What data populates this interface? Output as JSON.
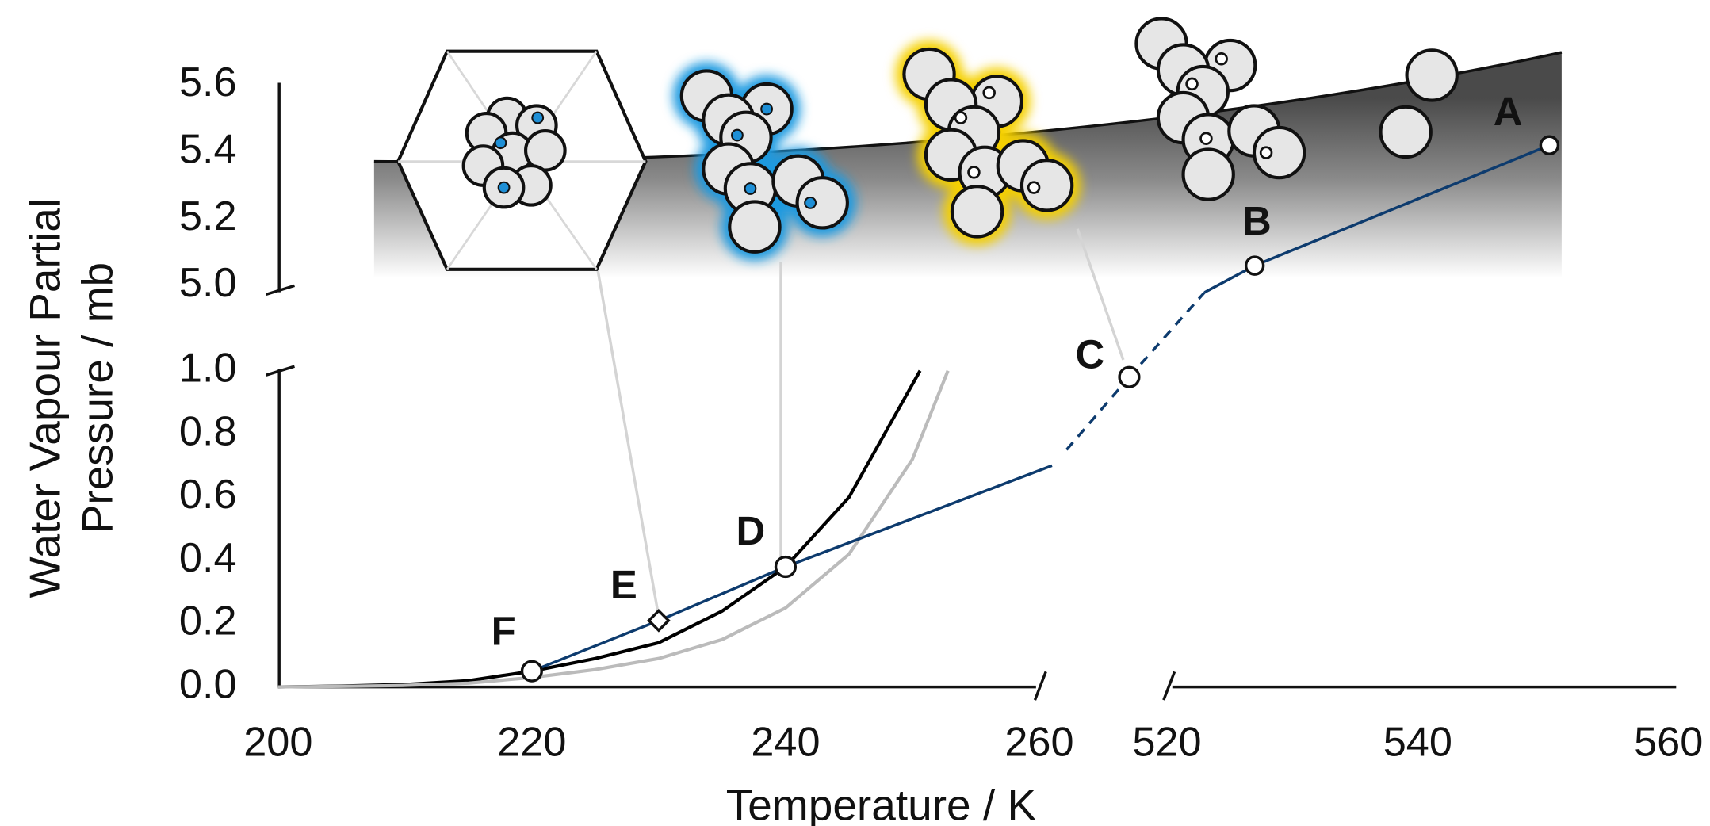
{
  "chart_data": {
    "type": "line",
    "x_label": "Temperature / K",
    "y_label_lines": [
      "Water Vapour Partial",
      "Pressure / mb"
    ],
    "x_segments": [
      {
        "xlim": [
          200,
          260
        ],
        "xticks": [
          200,
          220,
          240,
          260
        ]
      },
      {
        "xlim": [
          520,
          560
        ],
        "xticks": [
          520,
          540,
          560
        ]
      }
    ],
    "y_segments": [
      {
        "ylim": [
          0,
          1.0
        ],
        "yticks": [
          {
            "value": 0,
            "label": "0.0"
          },
          0.2,
          0.4,
          0.6,
          0.8,
          {
            "value": 1.0,
            "label": "1.0"
          }
        ]
      },
      {
        "ylim": [
          5.0,
          5.6
        ],
        "yticks": [
          {
            "value": 5.0,
            "label": "5.0"
          },
          5.2,
          5.4,
          5.6
        ]
      }
    ],
    "series": [
      {
        "color": "#000000",
        "x_segment": 0,
        "y_segment": 0,
        "x": [
          200,
          205,
          210,
          215,
          220,
          225,
          230,
          235,
          240,
          245,
          250.6
        ],
        "values": [
          0,
          0.003,
          0.008,
          0.02,
          0.05,
          0.09,
          0.14,
          0.24,
          0.38,
          0.6,
          1.0
        ]
      },
      {
        "color": "#bbbbbb",
        "x_segment": 0,
        "y_segment": 0,
        "x": [
          200,
          205,
          210,
          215,
          220,
          225,
          230,
          235,
          240,
          245,
          250,
          252.8
        ],
        "values": [
          0,
          0.002,
          0.005,
          0.012,
          0.03,
          0.055,
          0.09,
          0.15,
          0.25,
          0.42,
          0.72,
          1.0
        ]
      },
      {
        "color": "#0d3b6e",
        "x_segment": 0,
        "y_segment": 0,
        "x": [
          220,
          230,
          240,
          261
        ],
        "values": [
          0.05,
          0.21,
          0.38,
          0.7
        ]
      },
      {
        "color": "#0d3b6e",
        "dashed": true,
        "x_segment": 1,
        "y_segment": 0,
        "x": [
          512,
          517
        ],
        "values": [
          0.75,
          0.98
        ]
      },
      {
        "color": "#0d3b6e",
        "x_segment": 1,
        "y_segment": 1,
        "x": [
          523,
          527,
          550.5
        ],
        "values": [
          4.98,
          5.06,
          5.42
        ]
      }
    ],
    "points": [
      {
        "label": "F",
        "marker": "circle",
        "x_segment": 0,
        "y_segment": 0,
        "x": 220,
        "value": 0.05
      },
      {
        "label": "E",
        "marker": "diamond",
        "x_segment": 0,
        "y_segment": 0,
        "x": 230,
        "value": 0.21
      },
      {
        "label": "D",
        "marker": "circle",
        "x_segment": 0,
        "y_segment": 0,
        "x": 240,
        "value": 0.38
      },
      {
        "label": "C",
        "marker": "circle",
        "x_segment": 1,
        "y_segment": 0,
        "x": 517,
        "value": 0.98
      },
      {
        "label": "B",
        "marker": "circle",
        "x_segment": 1,
        "y_segment": 1,
        "x": 527,
        "value": 5.06
      },
      {
        "label": "A",
        "marker": "circle",
        "x_segment": 1,
        "y_segment": 1,
        "x": 550.5,
        "value": 5.42
      }
    ]
  }
}
